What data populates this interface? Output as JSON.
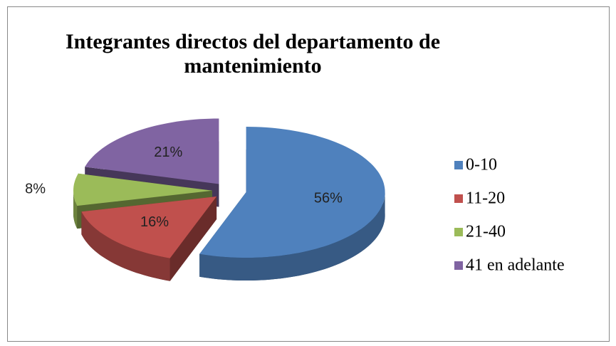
{
  "chart_data": {
    "type": "pie3d",
    "title": "Integrantes directos del departamento de mantenimiento",
    "categories": [
      "0-10",
      "11-20",
      "21-40",
      "41 en adelante"
    ],
    "values": [
      56,
      16,
      8,
      21
    ],
    "value_labels": [
      "56%",
      "16%",
      "8%",
      "21%"
    ],
    "colors": [
      "#4f81bd",
      "#c0504d",
      "#9bbb59",
      "#8064a2"
    ],
    "legend": "right"
  }
}
